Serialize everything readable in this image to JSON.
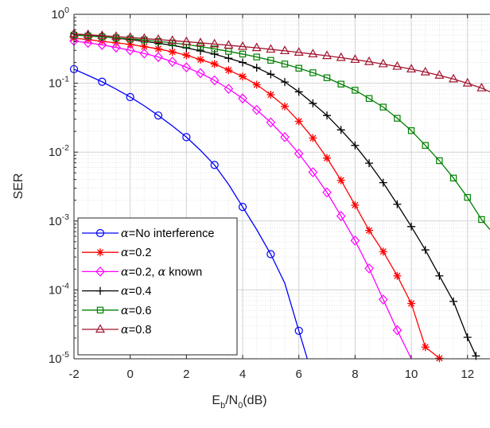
{
  "chart_data": {
    "type": "line",
    "xlabel_parts": [
      "E",
      "b",
      "/N",
      "0",
      "(dB)"
    ],
    "ylabel": "SER",
    "xlim": [
      -2,
      12.8
    ],
    "ylim": [
      1e-05,
      1
    ],
    "yscale": "log",
    "grid": true,
    "minor_grid": true,
    "legend_position": "bottom-left",
    "x_ticks": [
      -2,
      0,
      2,
      4,
      6,
      8,
      10,
      12
    ],
    "x_tick_labels": [
      "-2",
      "0",
      "2",
      "4",
      "6",
      "8",
      "10",
      "12"
    ],
    "y_ticks": [
      {
        "exp": 0,
        "base": "10",
        "sup": "0"
      },
      {
        "exp": -1,
        "base": "10",
        "sup": "-1"
      },
      {
        "exp": -2,
        "base": "10",
        "sup": "-2"
      },
      {
        "exp": -3,
        "base": "10",
        "sup": "-3"
      },
      {
        "exp": -4,
        "base": "10",
        "sup": "-4"
      },
      {
        "exp": -5,
        "base": "10",
        "sup": "-5"
      }
    ],
    "legend_greek": "α",
    "series": [
      {
        "legend": "=No interference",
        "greek_suffix": "",
        "color": "#0000ff",
        "marker": "circle",
        "every": 2,
        "x": [
          -2,
          -1.5,
          -1,
          -0.5,
          0,
          0.5,
          1,
          1.5,
          2,
          2.5,
          3,
          3.5,
          4,
          4.5,
          5,
          5.5,
          6,
          6.3
        ],
        "y": [
          0.16,
          0.13,
          0.105,
          0.082,
          0.063,
          0.047,
          0.034,
          0.024,
          0.0165,
          0.0106,
          0.0065,
          0.0034,
          0.0016,
          0.00075,
          0.00033,
          0.000125,
          2.55e-05,
          1e-05
        ]
      },
      {
        "legend": "=0.2",
        "greek_suffix": "",
        "color": "#ff0000",
        "marker": "star",
        "every": 1,
        "x": [
          -2,
          -1.5,
          -1,
          -0.5,
          0,
          0.5,
          1,
          1.5,
          2,
          2.5,
          3,
          3.5,
          4,
          4.5,
          5,
          5.5,
          6,
          6.5,
          7,
          7.5,
          8,
          8.5,
          9,
          9.5,
          10,
          10.5,
          11
        ],
        "y": [
          0.45,
          0.43,
          0.405,
          0.385,
          0.365,
          0.34,
          0.315,
          0.285,
          0.255,
          0.22,
          0.19,
          0.155,
          0.125,
          0.095,
          0.068,
          0.046,
          0.028,
          0.016,
          0.0082,
          0.0039,
          0.0017,
          0.00073,
          0.00036,
          0.00016,
          6.35e-05,
          1.48e-05,
          1.02e-05
        ]
      },
      {
        "legend": "=0.2, ",
        "greek_suffix": " known",
        "color": "#ff00ff",
        "marker": "diamond",
        "every": 1,
        "x": [
          -2,
          -1.5,
          -1,
          -0.5,
          0,
          0.5,
          1,
          1.5,
          2,
          2.5,
          3,
          3.5,
          4,
          4.5,
          5,
          5.5,
          6,
          6.5,
          7,
          7.5,
          8,
          8.5,
          9,
          9.5,
          10
        ],
        "y": [
          0.41,
          0.385,
          0.36,
          0.33,
          0.3,
          0.27,
          0.24,
          0.205,
          0.17,
          0.14,
          0.11,
          0.083,
          0.06,
          0.041,
          0.027,
          0.0165,
          0.0095,
          0.0051,
          0.0026,
          0.00118,
          0.00052,
          0.000205,
          7.25e-05,
          2.6e-05,
          1e-05
        ]
      },
      {
        "legend": "=0.4",
        "greek_suffix": "",
        "color": "#000000",
        "marker": "plus",
        "every": 1,
        "x": [
          -2,
          -1.5,
          -1,
          -0.5,
          0,
          0.5,
          1,
          1.5,
          2,
          2.5,
          3,
          3.5,
          4,
          4.5,
          5,
          5.5,
          6,
          6.5,
          7,
          7.5,
          8,
          8.5,
          9,
          9.5,
          10,
          10.5,
          11,
          11.5,
          12,
          12.3
        ],
        "y": [
          0.52,
          0.5,
          0.475,
          0.45,
          0.43,
          0.405,
          0.38,
          0.355,
          0.325,
          0.295,
          0.265,
          0.23,
          0.2,
          0.168,
          0.135,
          0.104,
          0.075,
          0.051,
          0.034,
          0.021,
          0.0125,
          0.0069,
          0.0036,
          0.00175,
          0.00083,
          0.00038,
          0.00016,
          6.8e-05,
          2.05e-05,
          1.1e-05
        ]
      },
      {
        "legend": "=0.6",
        "greek_suffix": "",
        "color": "#008000",
        "marker": "square",
        "every": 1,
        "x": [
          -2,
          -1.5,
          -1,
          -0.5,
          0,
          0.5,
          1,
          1.5,
          2,
          2.5,
          3,
          3.5,
          4,
          4.5,
          5,
          5.5,
          6,
          6.5,
          7,
          7.5,
          8,
          8.5,
          9,
          9.5,
          10,
          10.5,
          11,
          11.5,
          12,
          12.5,
          12.8
        ],
        "y": [
          0.5,
          0.485,
          0.47,
          0.455,
          0.44,
          0.425,
          0.405,
          0.385,
          0.365,
          0.34,
          0.315,
          0.29,
          0.265,
          0.24,
          0.215,
          0.19,
          0.165,
          0.142,
          0.12,
          0.097,
          0.079,
          0.06,
          0.045,
          0.031,
          0.0205,
          0.0125,
          0.0075,
          0.0042,
          0.0022,
          0.00105,
          0.00075
        ]
      },
      {
        "legend": "=0.8",
        "greek_suffix": "",
        "color": "#a2142f",
        "marker": "triangle",
        "every": 1,
        "x": [
          -2,
          -1.5,
          -1,
          -0.5,
          0,
          0.5,
          1,
          1.5,
          2,
          2.5,
          3,
          3.5,
          4,
          4.5,
          5,
          5.5,
          6,
          6.5,
          7,
          7.5,
          8,
          8.5,
          9,
          9.5,
          10,
          10.5,
          11,
          11.5,
          12,
          12.5,
          12.8
        ],
        "y": [
          0.52,
          0.505,
          0.49,
          0.475,
          0.46,
          0.445,
          0.43,
          0.415,
          0.4,
          0.385,
          0.37,
          0.355,
          0.34,
          0.326,
          0.31,
          0.295,
          0.28,
          0.265,
          0.25,
          0.235,
          0.22,
          0.205,
          0.19,
          0.175,
          0.16,
          0.145,
          0.13,
          0.115,
          0.1,
          0.085,
          0.075
        ]
      }
    ]
  }
}
